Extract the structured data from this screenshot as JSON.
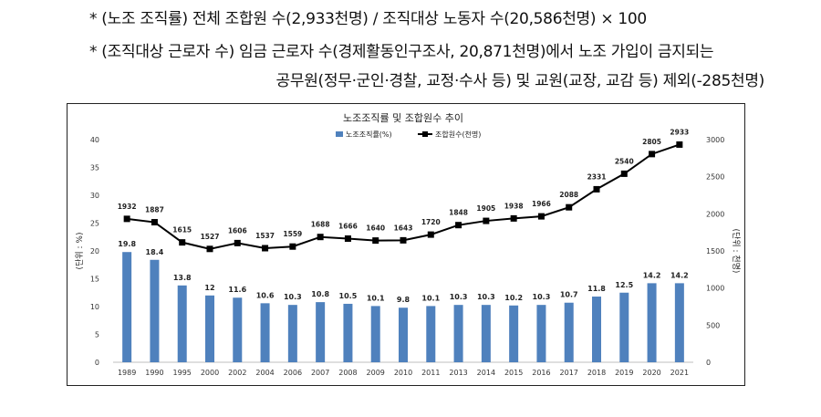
{
  "notes": {
    "line1": "* (노조 조직률) 전체 조합원 수(2,933천명) / 조직대상 노동자 수(20,586천명) × 100",
    "line2": "* (조직대상 근로자 수) 임금 근로자 수(경제활동인구조사, 20,871천명)에서 노조 가입이 금지되는",
    "line3": "공무원(정무·군인·경찰, 교정·수사 등) 및 교원(교장, 교감 등) 제외(-285천명)"
  },
  "chart_data": {
    "type": "bar+line",
    "title": "노조조직률 및 조합원수 추이",
    "ylabel_left": "(단위 : %)",
    "ylabel_right": "(단위 : 천명)",
    "ylim_left": [
      0,
      40
    ],
    "ylim_right": [
      0,
      3000
    ],
    "yticks_left": [
      "0",
      "5",
      "10",
      "15",
      "20",
      "25",
      "30",
      "35",
      "40"
    ],
    "yticks_right": [
      "0",
      "500",
      "1000",
      "1500",
      "2000",
      "2500",
      "3000"
    ],
    "legend_position": "top-center",
    "categories": [
      "1989",
      "1990",
      "1995",
      "2000",
      "2002",
      "2004",
      "2006",
      "2007",
      "2008",
      "2009",
      "2010",
      "2011",
      "2013",
      "2014",
      "2015",
      "2016",
      "2017",
      "2018",
      "2019",
      "2020",
      "2021"
    ],
    "series": [
      {
        "name": "노조조직률(%)",
        "type": "bar",
        "axis": "left",
        "color": "#4f81bd",
        "values": [
          19.8,
          18.4,
          13.8,
          12,
          11.6,
          10.6,
          10.3,
          10.8,
          10.5,
          10.1,
          9.8,
          10.1,
          10.3,
          10.3,
          10.2,
          10.3,
          10.7,
          11.8,
          12.5,
          14.2,
          14.2
        ]
      },
      {
        "name": "조합원수(천명)",
        "type": "line",
        "axis": "right",
        "color": "#000000",
        "values": [
          1932,
          1887,
          1615,
          1527,
          1606,
          1537,
          1559,
          1688,
          1666,
          1640,
          1643,
          1720,
          1848,
          1905,
          1938,
          1966,
          2088,
          2331,
          2540,
          2805,
          2933
        ]
      }
    ]
  }
}
